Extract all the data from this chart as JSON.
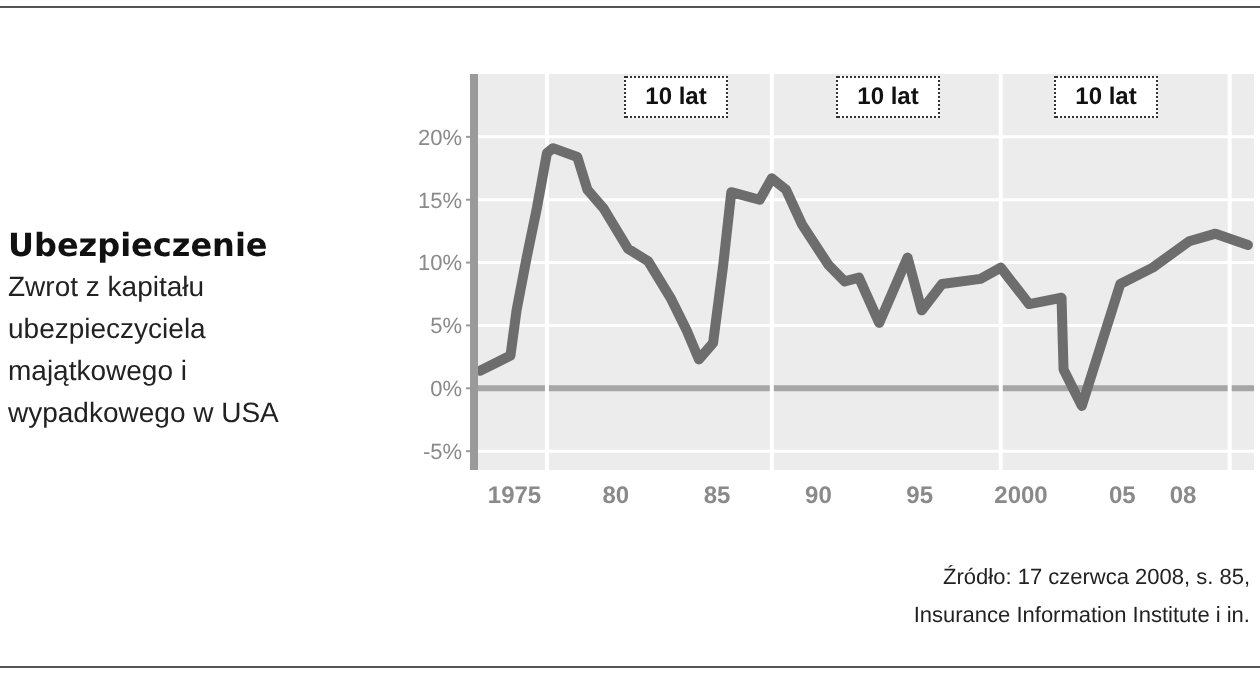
{
  "chart_data": {
    "type": "line",
    "title": "Ubezpieczenie",
    "subtitle": "Zwrot z kapitału ubezpieczyciela majątkowego i wypadkowego w USA",
    "x": [
      1973.3,
      1974.8,
      1975.1,
      1975.6,
      1976.1,
      1976.6,
      1976.9,
      1978.1,
      1978.6,
      1979.4,
      1980.6,
      1981.6,
      1982.7,
      1983.5,
      1984.1,
      1984.8,
      1985.3,
      1985.7,
      1987.1,
      1987.7,
      1988.4,
      1989.2,
      1990.5,
      1991.3,
      1992.0,
      1993.0,
      1994.4,
      1995.1,
      1996.1,
      1998.0,
      1999.0,
      2000.4,
      2002.0,
      2002.1,
      2003.0,
      2004.9,
      2006.5,
      2008.3,
      2009.6,
      2011.2
    ],
    "series": [
      {
        "color": "#6d6d6d",
        "values": [
          1.4,
          2.6,
          6.2,
          10.4,
          14.3,
          18.7,
          19.1,
          18.4,
          15.8,
          14.3,
          11.1,
          10.1,
          7.2,
          4.6,
          2.3,
          3.6,
          9.8,
          15.6,
          15.0,
          16.7,
          15.8,
          13.0,
          9.8,
          8.5,
          8.8,
          5.2,
          10.4,
          6.2,
          8.3,
          8.7,
          9.6,
          6.7,
          7.2,
          1.5,
          -1.4,
          8.3,
          9.6,
          11.7,
          12.3,
          11.4
        ]
      }
    ],
    "xlim": [
      1973,
      2011.5
    ],
    "xticks": [
      {
        "value": 1975,
        "label": "1975"
      },
      {
        "value": 1980,
        "label": "80"
      },
      {
        "value": 1985,
        "label": "85"
      },
      {
        "value": 1990,
        "label": "90"
      },
      {
        "value": 1995,
        "label": "95"
      },
      {
        "value": 2000,
        "label": "2000"
      },
      {
        "value": 2005,
        "label": "05"
      },
      {
        "value": 2008,
        "label": "08"
      }
    ],
    "ylim": [
      -6.5,
      25
    ],
    "yticks": [
      {
        "value": -5,
        "label": "-5%"
      },
      {
        "value": 0,
        "label": "0%"
      },
      {
        "value": 5,
        "label": "5%"
      },
      {
        "value": 10,
        "label": "10%"
      },
      {
        "value": 15,
        "label": "15%"
      },
      {
        "value": 20,
        "label": "20%"
      }
    ],
    "grid": "y",
    "marker": "none",
    "line_style": "solid",
    "legend": false,
    "ref_lines": [
      {
        "axis": "y",
        "value": 0,
        "color": "#a6a6a6"
      },
      {
        "axis": "x",
        "value": 1976.6,
        "color": "#ffffff"
      },
      {
        "axis": "x",
        "value": 1987.7,
        "color": "#ffffff"
      },
      {
        "axis": "x",
        "value": 1999.0,
        "color": "#ffffff"
      },
      {
        "axis": "x",
        "value": 2010.3,
        "color": "#ffffff"
      }
    ],
    "annotations": [
      "10 lat",
      "10 lat",
      "10 lat",
      "Źródło: 17 czerwca 2008, s. 85, Insurance Information Institute i in."
    ]
  }
}
